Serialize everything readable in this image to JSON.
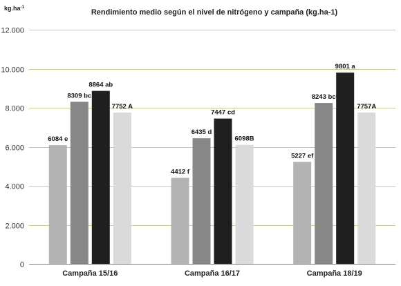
{
  "chart_data": {
    "type": "bar",
    "title": "Rendimiento medio según el nivel de nitrógeno y campaña (kg.ha-1)",
    "unit_label": "kg.ha",
    "unit_superscript": "-1",
    "ylim": [
      0,
      12000
    ],
    "yticks": [
      {
        "value": 0,
        "label": "0"
      },
      {
        "value": 2000,
        "label": "2.000"
      },
      {
        "value": 4000,
        "label": "4.000"
      },
      {
        "value": 6000,
        "label": "6.000"
      },
      {
        "value": 8000,
        "label": "8.000"
      },
      {
        "value": 10000,
        "label": "10.000"
      },
      {
        "value": 12000,
        "label": "12.000"
      }
    ],
    "grid": true,
    "legend": "none",
    "categories": [
      "Campaña 15/16",
      "Campaña 16/17",
      "Campaña 18/19"
    ],
    "series": [
      {
        "color": "#b3b3b3",
        "values": [
          6084,
          4412,
          5227
        ],
        "labels": [
          "6084 e",
          "4412 f",
          "5227 ef"
        ]
      },
      {
        "color": "#878787",
        "values": [
          8309,
          6435,
          8243
        ],
        "labels": [
          "8309 bc",
          "6435 d",
          "8243 bc"
        ]
      },
      {
        "color": "#1f1f1f",
        "values": [
          8864,
          7447,
          9801
        ],
        "labels": [
          "8864 ab",
          "7447 cd",
          "9801 a"
        ]
      },
      {
        "color": "#dadada",
        "values": [
          7752,
          6098,
          7757
        ],
        "labels": [
          "7752 A",
          "6098B",
          "7757A"
        ]
      }
    ]
  }
}
